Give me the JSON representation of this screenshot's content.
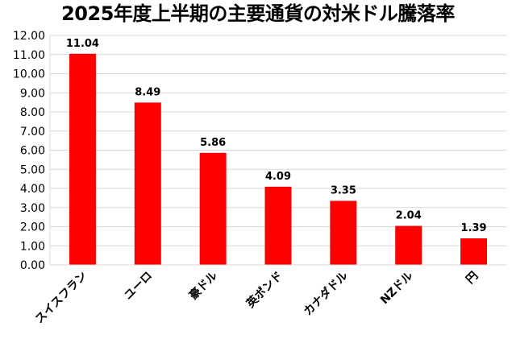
{
  "chart_data": {
    "type": "bar",
    "title": "2025年度上半期の主要通貨の対米ドル騰落率",
    "xlabel": "",
    "ylabel": "",
    "categories": [
      "スイスフラン",
      "ユーロ",
      "豪ドル",
      "英ポンド",
      "カナダドル",
      "NZドル",
      "円"
    ],
    "values": [
      11.04,
      8.49,
      5.86,
      4.09,
      3.35,
      2.04,
      1.39
    ],
    "data_labels": [
      "11.04",
      "8.49",
      "5.86",
      "4.09",
      "3.35",
      "2.04",
      "1.39"
    ],
    "ylim": [
      0,
      12
    ],
    "yticks": [
      "0.00",
      "1.00",
      "2.00",
      "3.00",
      "4.00",
      "5.00",
      "6.00",
      "7.00",
      "8.00",
      "9.00",
      "10.00",
      "11.00",
      "12.00"
    ],
    "grid": true,
    "legend": "none",
    "bar_color": "#ff0000",
    "grid_color": "#d9d9d9"
  }
}
